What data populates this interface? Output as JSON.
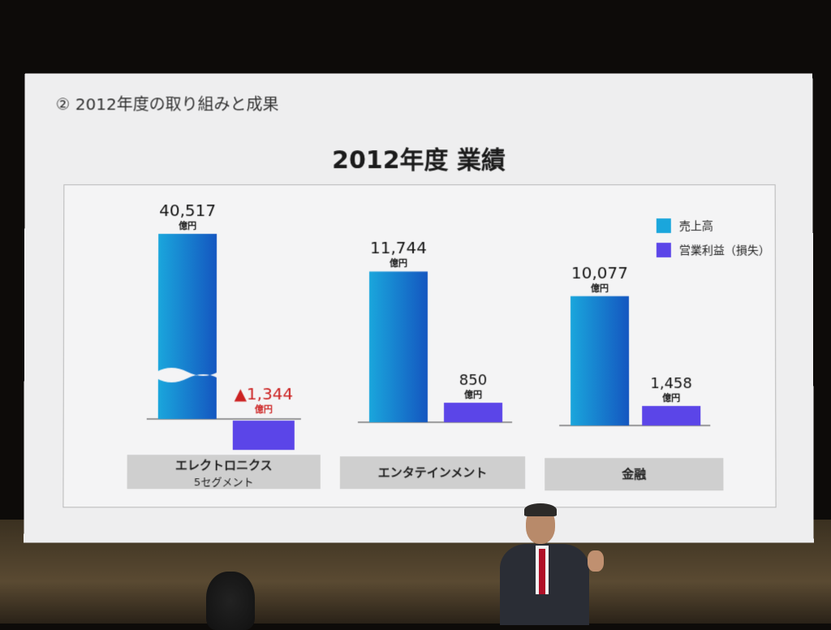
{
  "slide": {
    "section_title": "② 2012年度の取り組みと成果",
    "title": "2012年度 業績"
  },
  "legend": {
    "sales": "売上高",
    "profit": "営業利益（損失）"
  },
  "categories": [
    {
      "label": "エレクトロニクス",
      "sublabel": "5セグメント"
    },
    {
      "label": "エンタテインメント",
      "sublabel": ""
    },
    {
      "label": "金融",
      "sublabel": ""
    }
  ],
  "colors": {
    "sales": "#1aa6dc",
    "sales_dark": "#1456c0",
    "profit": "#5b45e8",
    "loss_text": "#cc2222"
  },
  "chart_data": {
    "type": "bar",
    "unit": "億円",
    "categories": [
      "エレクトロニクス 5セグメント",
      "エンタテインメント",
      "金融"
    ],
    "series": [
      {
        "name": "売上高",
        "values": [
          40517,
          11744,
          10077
        ],
        "labels": [
          "40,517",
          "11,744",
          "10,077"
        ]
      },
      {
        "name": "営業利益（損失）",
        "values": [
          -1344,
          850,
          1458
        ],
        "labels": [
          "▲1,344",
          "850",
          "1,458"
        ]
      }
    ],
    "axis_broken_for": "エレクトロニクス 売上高",
    "legend_position": "top-right",
    "grid": false
  }
}
